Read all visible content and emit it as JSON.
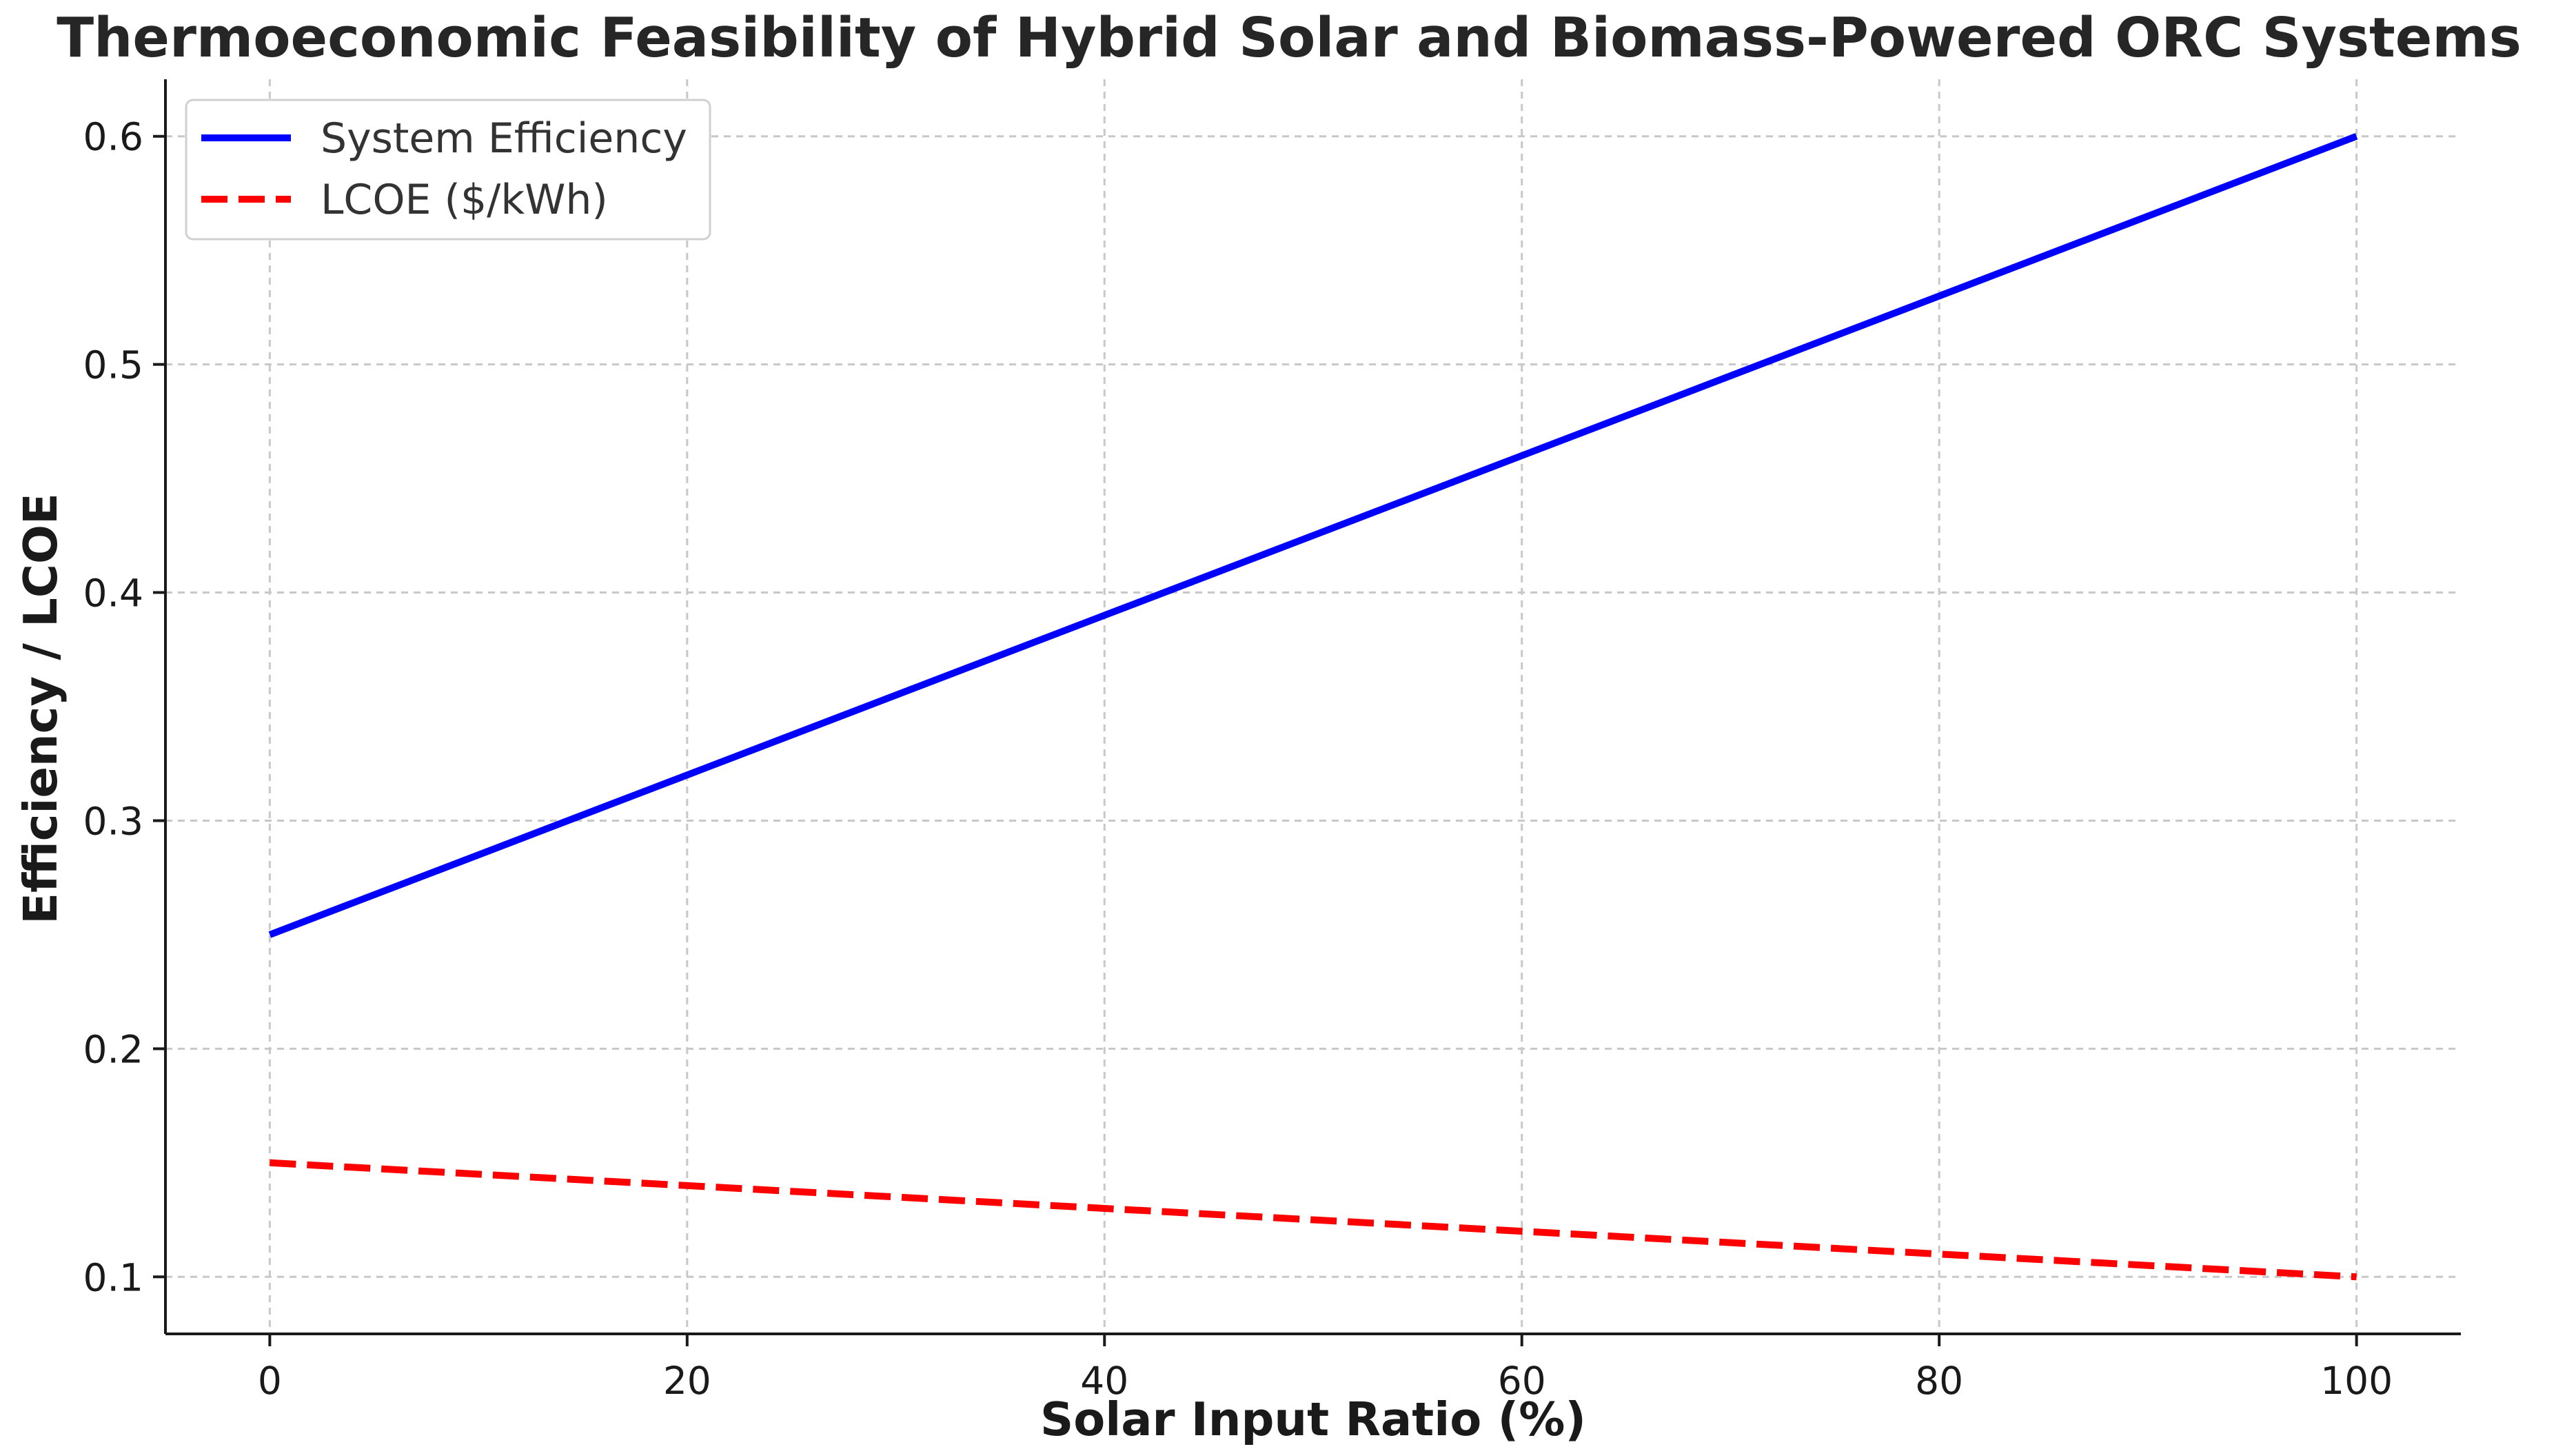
{
  "chart_data": {
    "type": "line",
    "title": "Thermoeconomic Feasibility of Hybrid Solar and Biomass-Powered ORC Systems",
    "xlabel": "Solar Input Ratio (%)",
    "ylabel": "Efficiency / LCOE",
    "xlim": [
      -5,
      105
    ],
    "ylim": [
      0.075,
      0.625
    ],
    "xticks": [
      0,
      20,
      40,
      60,
      80,
      100
    ],
    "yticks": [
      0.1,
      0.2,
      0.3,
      0.4,
      0.5,
      0.6
    ],
    "xtick_labels": [
      "0",
      "20",
      "40",
      "60",
      "80",
      "100"
    ],
    "ytick_labels": [
      "0.1",
      "0.2",
      "0.3",
      "0.4",
      "0.5",
      "0.6"
    ],
    "grid": true,
    "legend_position": "top-left",
    "series": [
      {
        "name": "System Efficiency",
        "color": "#0000ff",
        "line_style": "solid",
        "x": [
          0,
          20,
          40,
          60,
          80,
          100
        ],
        "y": [
          0.25,
          0.32,
          0.39,
          0.46,
          0.53,
          0.6
        ]
      },
      {
        "name": "LCOE ($/kWh)",
        "color": "#ff0000",
        "line_style": "dashed",
        "x": [
          0,
          20,
          40,
          60,
          80,
          100
        ],
        "y": [
          0.15,
          0.14,
          0.13,
          0.12,
          0.11,
          0.1
        ]
      }
    ]
  }
}
